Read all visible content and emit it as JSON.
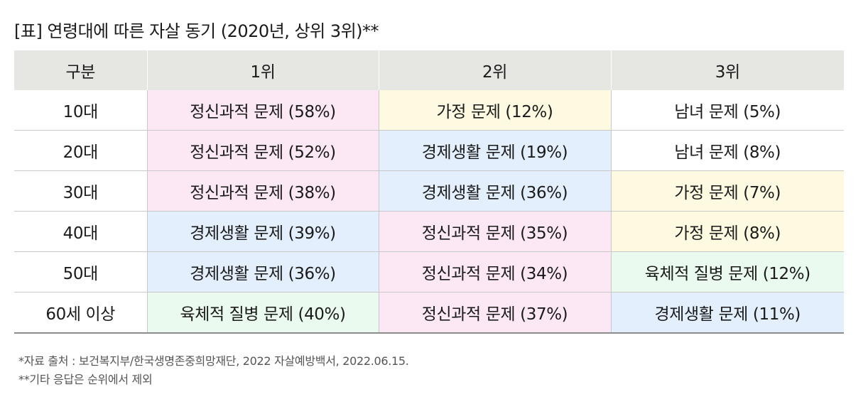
{
  "title": "[표] 연령대에 따른 자살 동기 (2020년, 상위 3위)**",
  "table": {
    "headers": [
      "구분",
      "1위",
      "2위",
      "3위"
    ],
    "rows": [
      {
        "age": "10대",
        "cells": [
          {
            "text": "정신과적 문제 (58%)",
            "category": "mental"
          },
          {
            "text": "가정 문제 (12%)",
            "category": "family"
          },
          {
            "text": "남녀 문제 (5%)",
            "category": "gender"
          }
        ]
      },
      {
        "age": "20대",
        "cells": [
          {
            "text": "정신과적 문제 (52%)",
            "category": "mental"
          },
          {
            "text": "경제생활 문제 (19%)",
            "category": "economic"
          },
          {
            "text": "남녀 문제 (8%)",
            "category": "gender"
          }
        ]
      },
      {
        "age": "30대",
        "cells": [
          {
            "text": "정신과적 문제 (38%)",
            "category": "mental"
          },
          {
            "text": "경제생활 문제 (36%)",
            "category": "economic"
          },
          {
            "text": "가정 문제 (7%)",
            "category": "family"
          }
        ]
      },
      {
        "age": "40대",
        "cells": [
          {
            "text": "경제생활 문제 (39%)",
            "category": "economic"
          },
          {
            "text": "정신과적 문제 (35%)",
            "category": "mental"
          },
          {
            "text": "가정 문제 (8%)",
            "category": "family"
          }
        ]
      },
      {
        "age": "50대",
        "cells": [
          {
            "text": "경제생활 문제 (36%)",
            "category": "economic"
          },
          {
            "text": "정신과적 문제 (34%)",
            "category": "mental"
          },
          {
            "text": "육체적 질병 문제 (12%)",
            "category": "physical"
          }
        ]
      },
      {
        "age": "60세 이상",
        "cells": [
          {
            "text": "육체적 질병 문제 (40%)",
            "category": "physical"
          },
          {
            "text": "정신과적 문제 (37%)",
            "category": "mental"
          },
          {
            "text": "경제생활 문제 (11%)",
            "category": "economic"
          }
        ]
      }
    ]
  },
  "category_colors": {
    "mental": "#fce8f5",
    "economic": "#e3effd",
    "family": "#fdfae1",
    "gender": "#ffffff",
    "physical": "#eafaee",
    "header": "#e6e6e2"
  },
  "notes": {
    "source": "*자료 출처 : 보건복지부/한국생명존중희망재단, 2022 자살예방백서, 2022.06.15.",
    "exclusion": "**기타 응답은 순위에서 제외"
  }
}
